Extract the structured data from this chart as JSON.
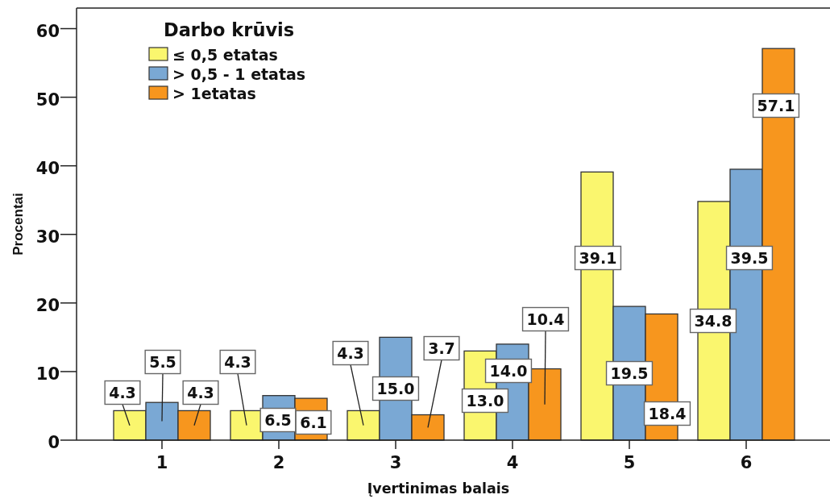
{
  "chart_data": {
    "type": "bar",
    "xlabel": "Įvertinimas balais",
    "ylabel": "Procentai",
    "legend_title": "Darbo krūvis",
    "legend": "top left",
    "categories": [
      "1",
      "2",
      "3",
      "4",
      "5",
      "6"
    ],
    "ylim": [
      0,
      63
    ],
    "yticks": [
      0,
      10,
      20,
      30,
      40,
      50,
      60
    ],
    "series": [
      {
        "name": "≤ 0,5 etatas",
        "color": "#faf66e",
        "values": [
          4.3,
          4.3,
          4.3,
          13.0,
          39.1,
          34.8
        ],
        "value_labels": [
          "4.3",
          "4.3",
          "4.3",
          "13.0",
          "39.1",
          "34.8"
        ]
      },
      {
        "name": "> 0,5 - 1 etatas",
        "color": "#7aa8d4",
        "values": [
          5.5,
          6.5,
          15.0,
          14.0,
          19.5,
          39.5
        ],
        "value_labels": [
          "5.5",
          "6.5",
          "15.0",
          "14.0",
          "19.5",
          "39.5"
        ]
      },
      {
        "name": "> 1etatas",
        "color": "#f7961e",
        "values": [
          4.3,
          6.1,
          3.7,
          10.4,
          18.4,
          57.1
        ],
        "value_labels": [
          "4.3",
          "6.1",
          "3.7",
          "10.4",
          "18.4",
          "57.1"
        ]
      }
    ]
  }
}
